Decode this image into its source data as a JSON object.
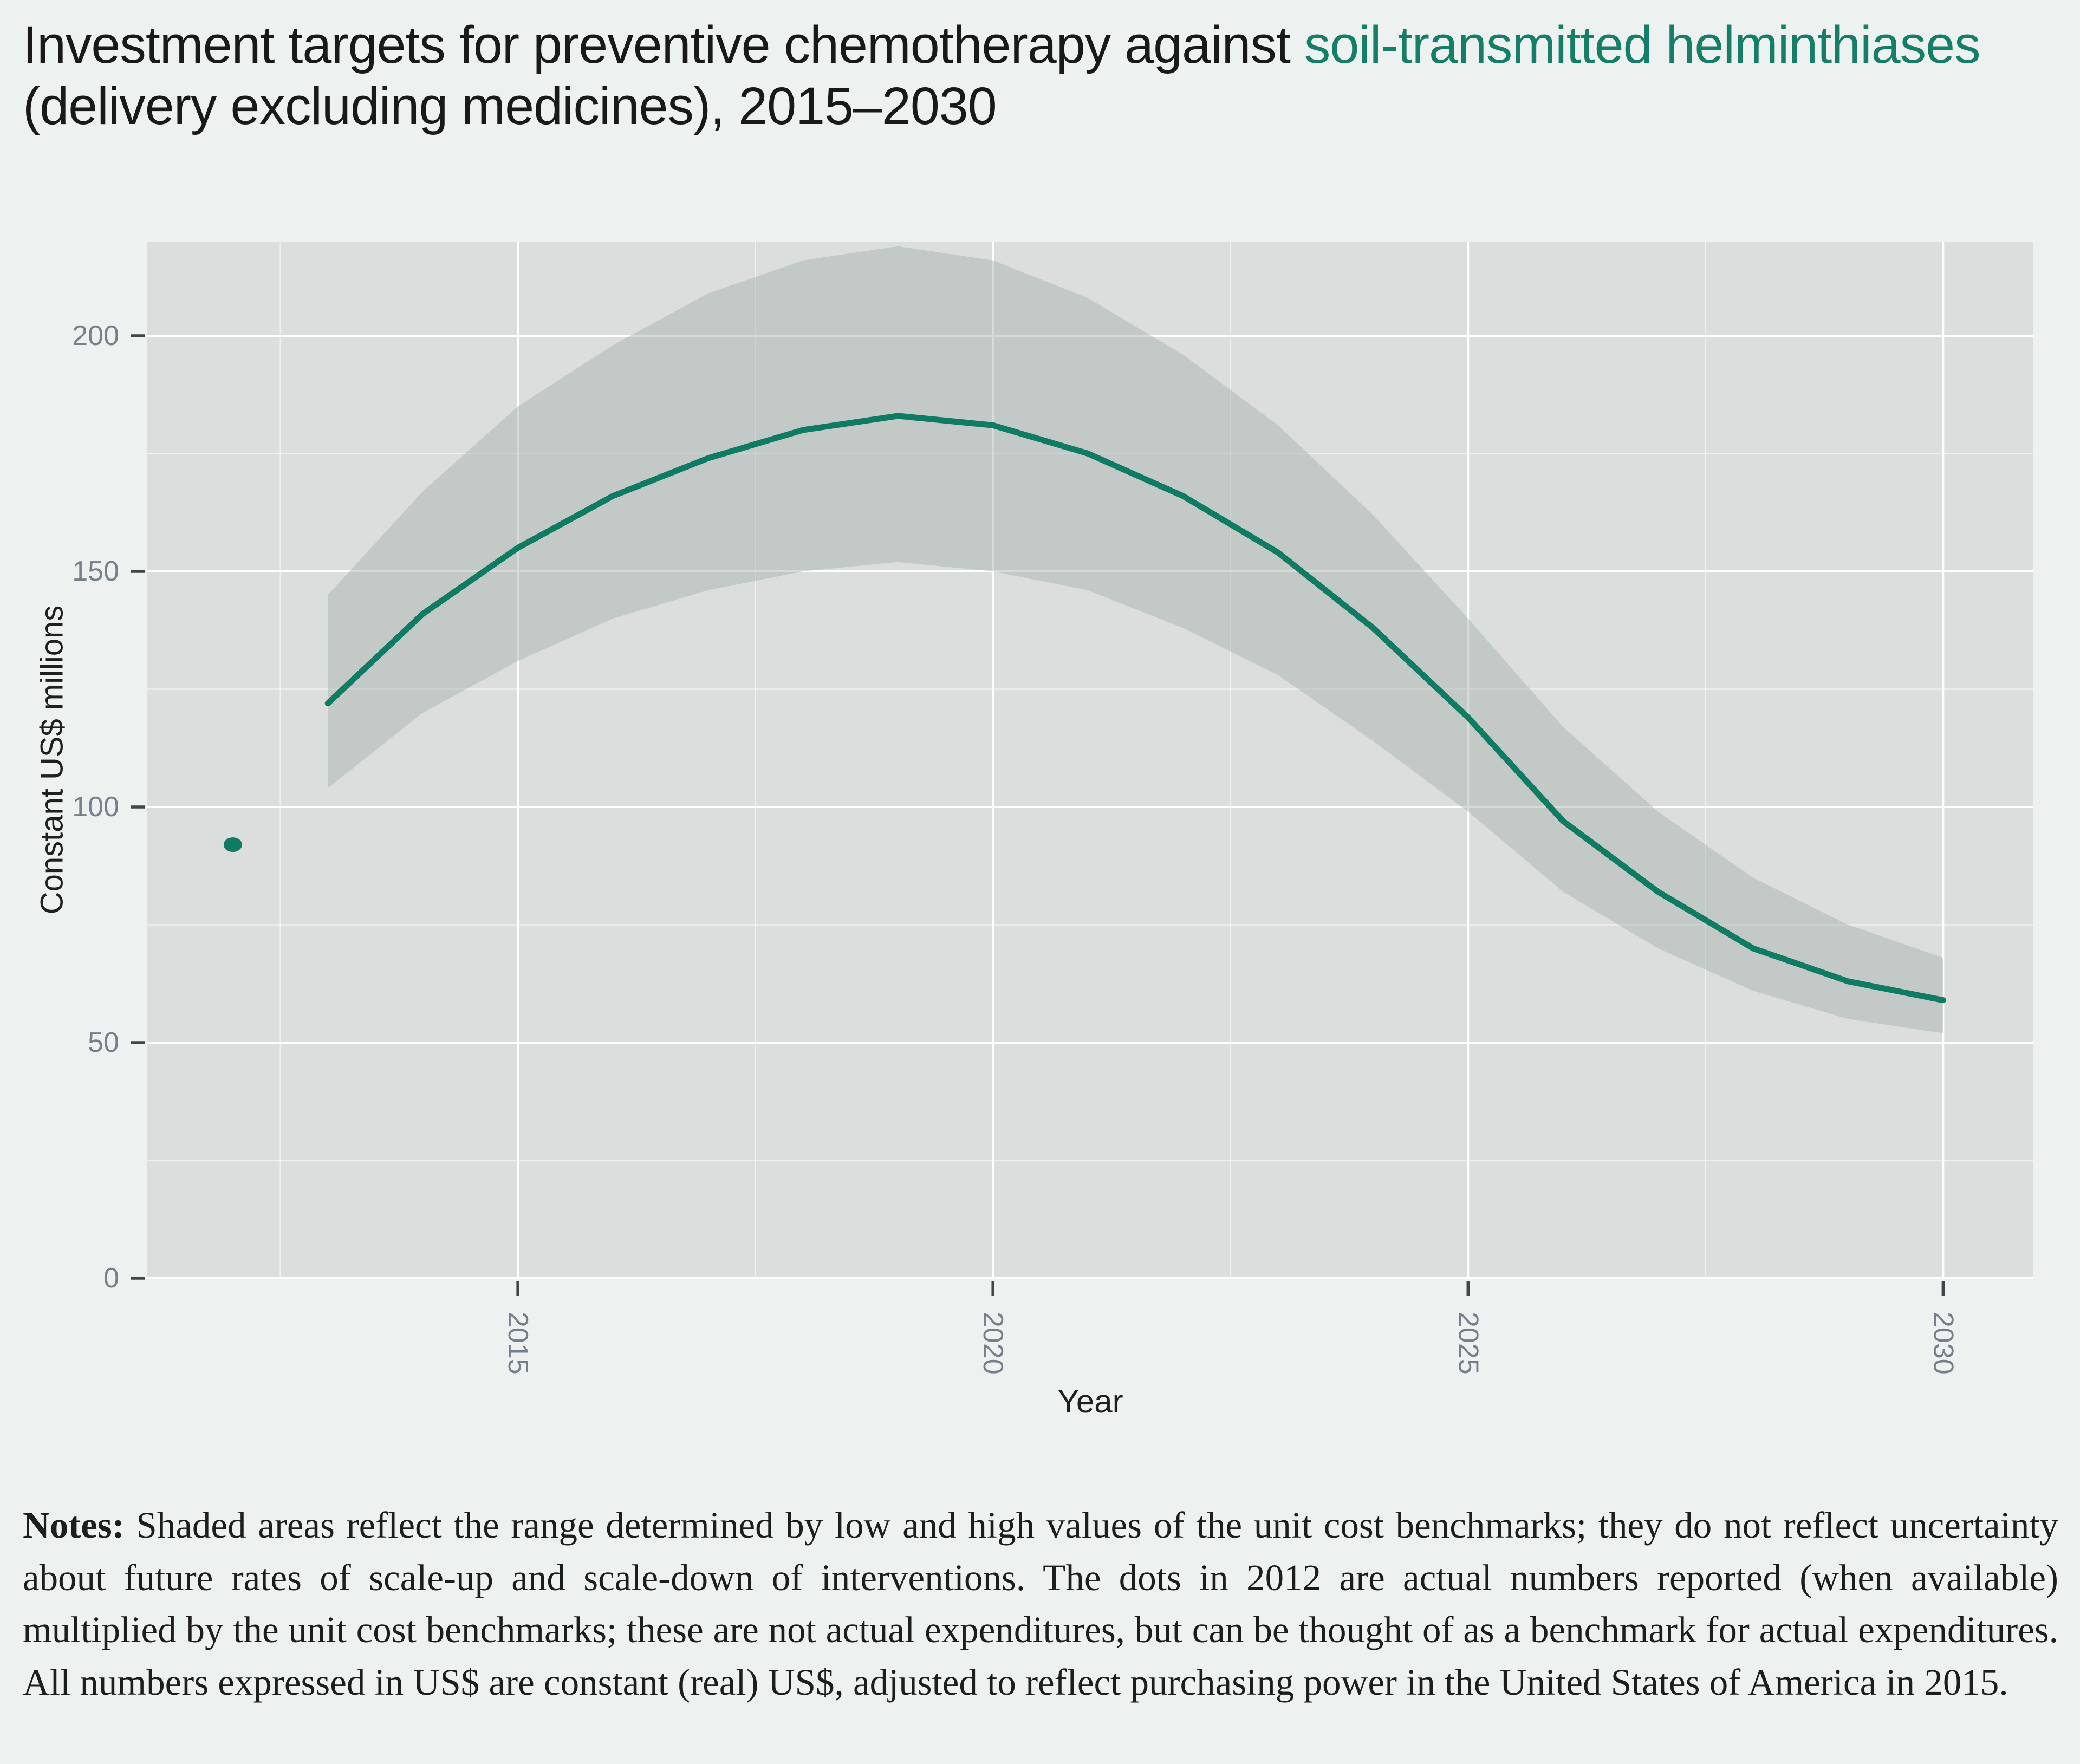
{
  "title": {
    "prefix": "Investment targets for preventive chemotherapy against ",
    "highlight": "soil-transmitted helminthiases",
    "suffix": " (delivery excluding medicines), 2015–2030"
  },
  "colors": {
    "background": "#edf1f0",
    "panel": "#dcdedd",
    "band_fill": "#a2afaa",
    "band_opacity": 0.45,
    "line": "#0e7b62",
    "dot": "#0e7b62",
    "accent_text": "#157e67",
    "gridline": "#ffffff",
    "tick_mark": "#3f474a",
    "tick_label": "#75808b",
    "axis_title": "#1f1f1f"
  },
  "chart_data": {
    "type": "line",
    "title": "",
    "xlabel": "Year",
    "ylabel": "Constant US$ millions",
    "xlim": [
      2011.1,
      2030.95
    ],
    "ylim": [
      0,
      220
    ],
    "x_ticks": [
      2015,
      2020,
      2025,
      2030
    ],
    "y_ticks": [
      0,
      50,
      100,
      150,
      200
    ],
    "x_minor": [
      2012.5,
      2017.5,
      2022.5,
      2027.5
    ],
    "y_minor": [
      25,
      75,
      125,
      175
    ],
    "grid": true,
    "legend": false,
    "x": [
      2013,
      2014,
      2015,
      2016,
      2017,
      2018,
      2019,
      2020,
      2021,
      2022,
      2023,
      2024,
      2025,
      2026,
      2027,
      2028,
      2029,
      2030
    ],
    "series": [
      {
        "name": "investment_target",
        "values": [
          122,
          141,
          155,
          166,
          174,
          180,
          183,
          181,
          175,
          166,
          154,
          138,
          119,
          97,
          82,
          70,
          63,
          59
        ]
      },
      {
        "name": "upper_bound_high_unit_cost",
        "values": [
          145,
          167,
          185,
          198,
          209,
          216,
          219,
          216,
          208,
          196,
          181,
          162,
          140,
          117,
          99,
          85,
          75,
          68
        ]
      },
      {
        "name": "lower_bound_low_unit_cost",
        "values": [
          104,
          120,
          131,
          140,
          146,
          150,
          152,
          150,
          146,
          138,
          128,
          114,
          99,
          82,
          70,
          61,
          55,
          52
        ]
      }
    ],
    "point": {
      "x": 2012,
      "y": 92
    }
  },
  "notes": {
    "label": "Notes:",
    "body": " Shaded areas reflect the range determined by low and high values of the unit cost benchmarks; they do not reflect uncertainty about future rates of scale-up and scale-down of interventions. The dots in 2012 are actual numbers reported (when available) multiplied by the unit cost benchmarks; these are not actual expenditures, but can be thought of as a benchmark for actual expenditures. All numbers expressed in US$ are constant (real) US$, adjusted to reflect purchasing power in the United States of America in 2015."
  }
}
